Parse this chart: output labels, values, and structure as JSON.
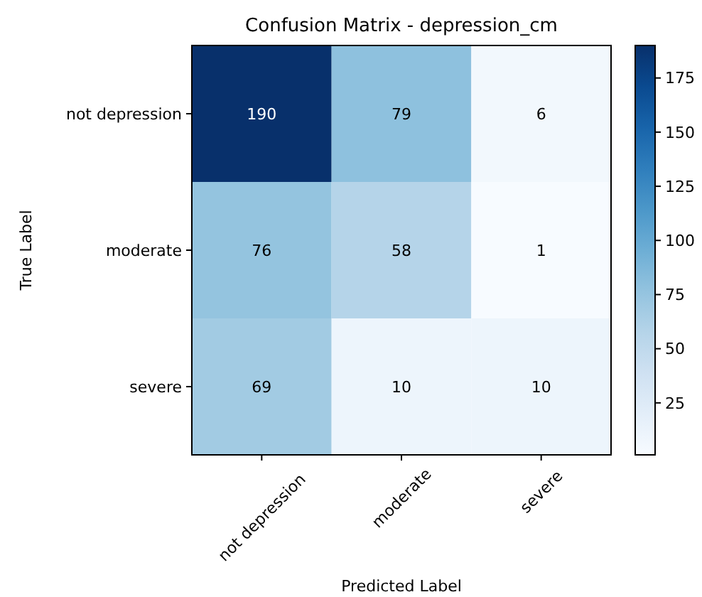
{
  "chart_data": {
    "type": "heatmap",
    "title": "Confusion Matrix - depression_cm",
    "xlabel": "Predicted Label",
    "ylabel": "True Label",
    "categories": [
      "not depression",
      "moderate",
      "severe"
    ],
    "y_categories": [
      "not depression",
      "moderate",
      "severe"
    ],
    "cells": [
      [
        190,
        79,
        6
      ],
      [
        76,
        58,
        1
      ],
      [
        69,
        10,
        10
      ]
    ],
    "clim": [
      1,
      190
    ],
    "cticks": [
      25,
      50,
      75,
      100,
      125,
      150,
      175
    ],
    "data_labels": true
  }
}
